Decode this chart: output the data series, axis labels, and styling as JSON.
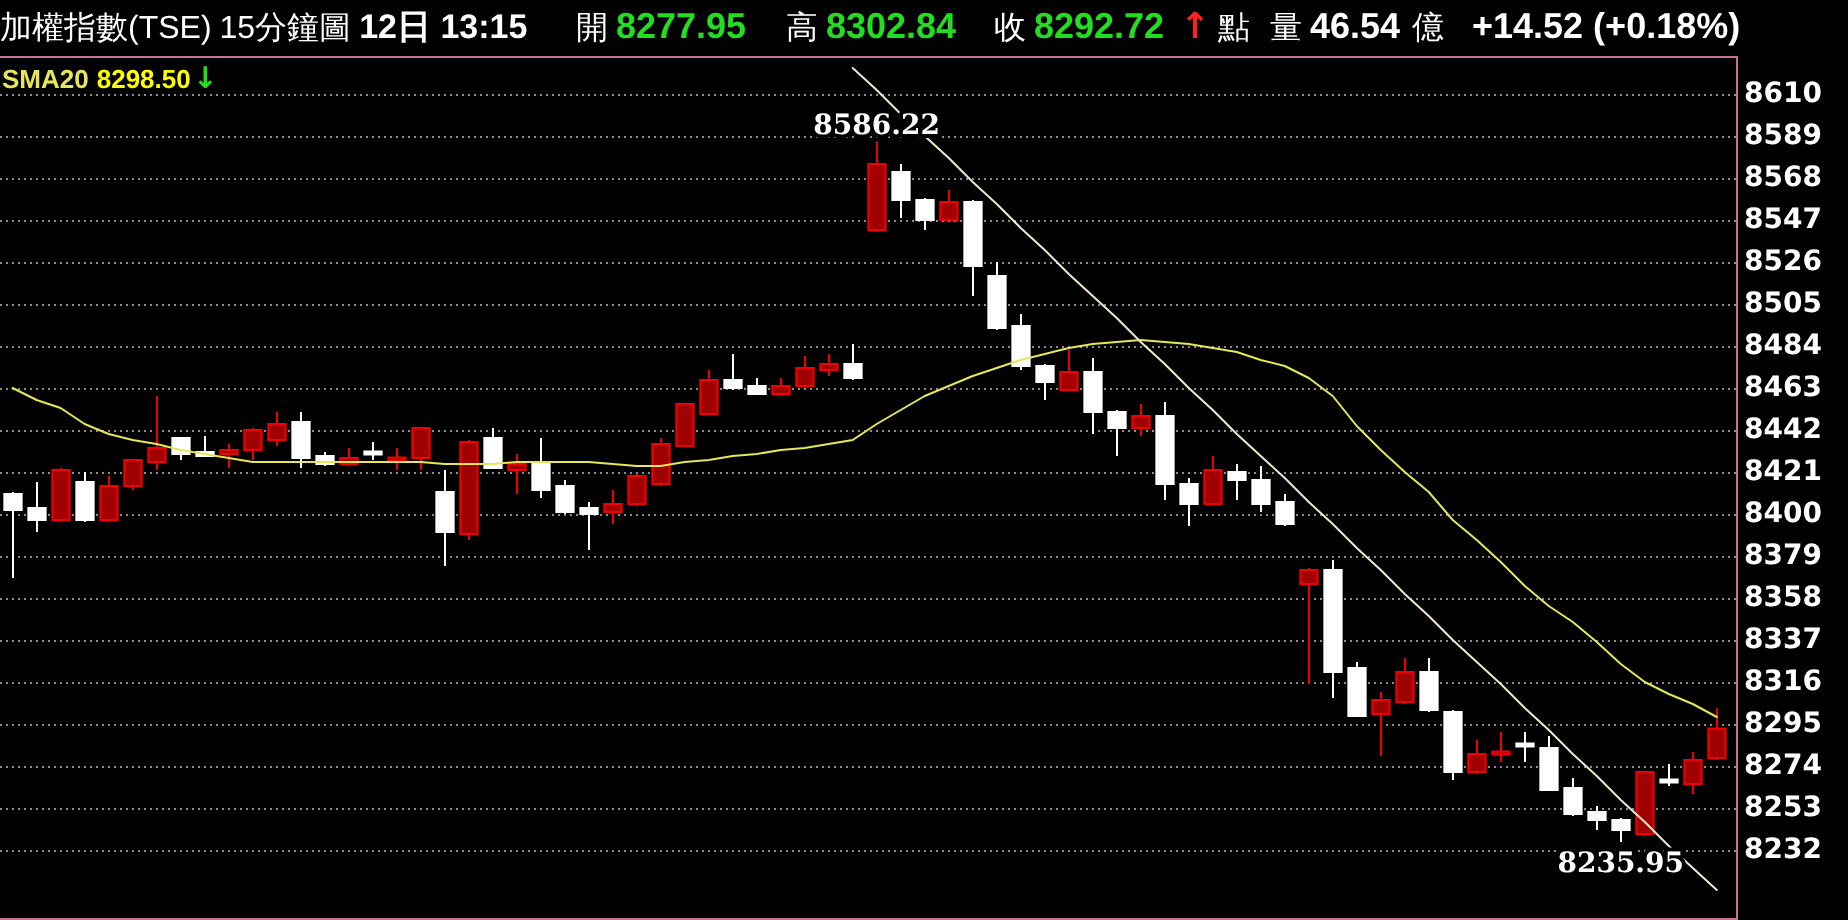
{
  "chart_data": {
    "type": "candlestick",
    "title": "加權指數(TSE)",
    "subtitle": "15分鐘圖",
    "categories": [
      null,
      null,
      null,
      null,
      null,
      null,
      null,
      null,
      null,
      null,
      null,
      null,
      null,
      null,
      null,
      null,
      null,
      null,
      null,
      null,
      null,
      null,
      null,
      null,
      null,
      null,
      null,
      null,
      null,
      null,
      null,
      null,
      null,
      null,
      null,
      null,
      null,
      null,
      null,
      null,
      null,
      null,
      null,
      null,
      null,
      null,
      null,
      null,
      null,
      null,
      null,
      null,
      null,
      null,
      null,
      null,
      null,
      null,
      null,
      null,
      null,
      null,
      null,
      null,
      null,
      null,
      null,
      null,
      null,
      null,
      null,
      null
    ],
    "ohlc": [
      [
        8410,
        8411,
        8368,
        8402
      ],
      [
        8403,
        8416,
        8391,
        8397
      ],
      [
        8397,
        8423,
        8396,
        8422
      ],
      [
        8416,
        8421,
        8396,
        8397
      ],
      [
        8397,
        8419,
        8396,
        8414
      ],
      [
        8414,
        8427,
        8412,
        8427
      ],
      [
        8426,
        8459,
        8422,
        8433
      ],
      [
        8438,
        8438,
        8427,
        8430
      ],
      [
        8431,
        8439,
        8429,
        8429
      ],
      [
        8430,
        8435,
        8423,
        8432
      ],
      [
        8432,
        8443,
        8427,
        8442
      ],
      [
        8437,
        8451,
        8434,
        8445
      ],
      [
        8446,
        8451,
        8423,
        8428
      ],
      [
        8429,
        8431,
        8424,
        8425
      ],
      [
        8425,
        8433,
        8424,
        8428
      ],
      [
        8431,
        8436,
        8427,
        8430
      ],
      [
        8427,
        8433,
        8422,
        8428
      ],
      [
        8428,
        8443,
        8422,
        8443
      ],
      [
        8411,
        8422,
        8374,
        8391
      ],
      [
        8390,
        8437,
        8387,
        8436
      ],
      [
        8438,
        8443,
        8423,
        8423
      ],
      [
        8422,
        8430,
        8410,
        8425
      ],
      [
        8426,
        8438,
        8408,
        8412
      ],
      [
        8414,
        8417,
        8400,
        8401
      ],
      [
        8403,
        8406,
        8382,
        8400
      ],
      [
        8401,
        8412,
        8395,
        8405
      ],
      [
        8405,
        8420,
        8404,
        8419
      ],
      [
        8415,
        8438,
        8414,
        8435
      ],
      [
        8434,
        8455,
        8434,
        8455
      ],
      [
        8450,
        8472,
        8450,
        8467
      ],
      [
        8467,
        8480,
        8462,
        8463
      ],
      [
        8464,
        8468,
        8460,
        8460
      ],
      [
        8460,
        8468,
        8459,
        8464
      ],
      [
        8464,
        8479,
        8463,
        8473
      ],
      [
        8472,
        8480,
        8469,
        8475
      ],
      [
        8475,
        8485,
        8467,
        8468
      ],
      [
        8542,
        8586.22,
        8541,
        8575
      ],
      [
        8571,
        8575,
        8548,
        8557
      ],
      [
        8557,
        8558,
        8542,
        8547
      ],
      [
        8547,
        8562,
        8547,
        8556
      ],
      [
        8556,
        8557,
        8509,
        8524
      ],
      [
        8519,
        8526,
        8492,
        8493
      ],
      [
        8494,
        8500,
        8472,
        8474
      ],
      [
        8474,
        8475,
        8457,
        8466
      ],
      [
        8462,
        8482,
        8462,
        8471
      ],
      [
        8471,
        8478,
        8440,
        8451
      ],
      [
        8451,
        8452,
        8429,
        8443
      ],
      [
        8443,
        8455,
        8439,
        8449
      ],
      [
        8449,
        8456,
        8407,
        8415
      ],
      [
        8415,
        8418,
        8394,
        8405
      ],
      [
        8405,
        8429,
        8405,
        8422
      ],
      [
        8421,
        8425,
        8407,
        8417
      ],
      [
        8417,
        8424,
        8401,
        8405
      ],
      [
        8406,
        8410,
        8394,
        8395
      ],
      [
        8365,
        8373,
        8315,
        8372
      ],
      [
        8372,
        8377,
        8308,
        8321
      ],
      [
        8323,
        8326,
        8299,
        8299
      ],
      [
        8300,
        8311,
        8279,
        8307
      ],
      [
        8306,
        8328,
        8305,
        8321
      ],
      [
        8321,
        8328,
        8301,
        8302
      ],
      [
        8301,
        8302,
        8267,
        8271
      ],
      [
        8271,
        8287,
        8270,
        8280
      ],
      [
        8280,
        8291,
        8276,
        8281
      ],
      [
        8285,
        8291,
        8276,
        8284
      ],
      [
        8283,
        8289,
        8262,
        8262
      ],
      [
        8263,
        8268,
        8249,
        8250
      ],
      [
        8251,
        8254,
        8242,
        8247
      ],
      [
        8247,
        8248,
        8235.95,
        8242
      ],
      [
        8240,
        8271,
        8239,
        8271
      ],
      [
        8267,
        8275,
        8264,
        8266
      ],
      [
        8265,
        8281,
        8260,
        8277
      ],
      [
        8277.95,
        8302.84,
        8277,
        8292.72
      ]
    ],
    "colors": [
      "#ffffff",
      "#ffffff",
      "#a00000",
      "#ffffff",
      "#a00000",
      "#a00000",
      "#a00000",
      "#ffffff",
      "#ffffff",
      "#a00000",
      "#a00000",
      "#a00000",
      "#ffffff",
      "#ffffff",
      "#a00000",
      "#ffffff",
      "#a00000",
      "#a00000",
      "#ffffff",
      "#a00000",
      "#ffffff",
      "#a00000",
      "#ffffff",
      "#ffffff",
      "#ffffff",
      "#a00000",
      "#a00000",
      "#a00000",
      "#a00000",
      "#a00000",
      "#ffffff",
      "#ffffff",
      "#a00000",
      "#a00000",
      "#a00000",
      "#ffffff",
      "#a00000",
      "#ffffff",
      "#ffffff",
      "#a00000",
      "#ffffff",
      "#ffffff",
      "#ffffff",
      "#ffffff",
      "#a00000",
      "#ffffff",
      "#ffffff",
      "#a00000",
      "#ffffff",
      "#ffffff",
      "#a00000",
      "#ffffff",
      "#ffffff",
      "#ffffff",
      "#a00000",
      "#ffffff",
      "#ffffff",
      "#a00000",
      "#a00000",
      "#ffffff",
      "#ffffff",
      "#a00000",
      "#a00000",
      "#ffffff",
      "#ffffff",
      "#ffffff",
      "#ffffff",
      "#ffffff",
      "#a00000",
      "#ffffff",
      "#a00000",
      "#a00000"
    ],
    "series": [
      {
        "type": "line",
        "name": "SMA20",
        "color": "#e6e65a",
        "values": [
          8463,
          8457,
          8453,
          8445,
          8440,
          8437,
          8435,
          8432,
          8430,
          8428,
          8426,
          8426,
          8426,
          8426,
          8426,
          8426,
          8426,
          8426,
          8425,
          8425,
          8425,
          8426,
          8426,
          8426,
          8426,
          8425,
          8424,
          8424,
          8426,
          8427,
          8429,
          8430,
          8432,
          8433,
          8435,
          8437,
          8445,
          8452,
          8459,
          8464,
          8469,
          8473,
          8477,
          8480,
          8483,
          8485,
          8486,
          8487,
          8486,
          8485,
          8483,
          8481,
          8477,
          8474,
          8468,
          8459,
          8444,
          8432,
          8421,
          8411,
          8397,
          8387,
          8376,
          8364,
          8354,
          8346,
          8336,
          8325,
          8316,
          8310,
          8305,
          8298.5
        ]
      },
      {
        "type": "line",
        "color": "#f0e8c8",
        "values": [
          null,
          null,
          null,
          null,
          null,
          null,
          null,
          null,
          null,
          null,
          null,
          null,
          null,
          null,
          null,
          null,
          null,
          null,
          null,
          null,
          null,
          null,
          null,
          null,
          null,
          null,
          null,
          null,
          null,
          null,
          null,
          null,
          null,
          null,
          null,
          8623,
          8612,
          8600,
          8589,
          8578,
          8566,
          8555,
          8543,
          8532,
          8520,
          8509,
          8498,
          8486,
          8475,
          8463,
          8452,
          8440,
          8429,
          8418,
          8406,
          8395,
          8383,
          8372,
          8360,
          8349,
          8337,
          8326,
          8315,
          8303,
          8292,
          8280,
          8269,
          8257,
          8246,
          8234,
          8223,
          8212
        ]
      }
    ],
    "ylim": [
      8198,
      8629
    ],
    "yticks": [
      8232,
      8253,
      8274,
      8295,
      8316,
      8337,
      8358,
      8379,
      8400,
      8421,
      8442,
      8463,
      8484,
      8505,
      8526,
      8547,
      8568,
      8589,
      8610
    ],
    "grid": "y",
    "legend": "top left",
    "tick_labels": "y",
    "annotations": [
      "12日 13:15",
      "開",
      "8277.95",
      "高",
      "8302.84",
      "收",
      "8292.72",
      "↑",
      "點",
      "量",
      "46.54",
      "億",
      "+14.52 (+0.18%)",
      "8298.50",
      "↓",
      {
        "text": "8586.22",
        "y": 8586.22
      },
      {
        "text": "8235.95",
        "y": 8235.95
      }
    ]
  }
}
